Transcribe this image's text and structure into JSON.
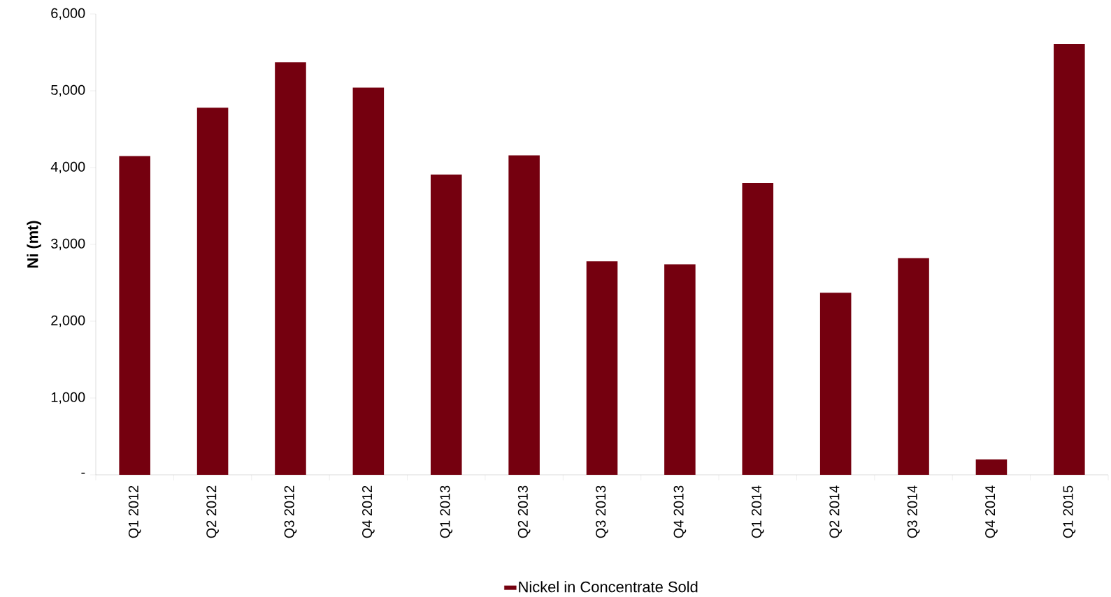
{
  "chart_data": {
    "type": "bar",
    "ylabel": "Ni (mt)",
    "categories": [
      "Q1  2012",
      "Q2  2012",
      "Q3  2012",
      "Q4  2012",
      "Q1  2013",
      "Q2  2013",
      "Q3  2013",
      "Q4  2013",
      "Q1  2014",
      "Q2  2014",
      "Q3  2014",
      "Q4  2014",
      "Q1  2015"
    ],
    "series": [
      {
        "name": "Nickel in Concentrate Sold",
        "color": "#75000f",
        "values": [
          4150,
          4780,
          5370,
          5040,
          3910,
          4160,
          2780,
          2740,
          3800,
          2370,
          2820,
          200,
          5610
        ]
      }
    ],
    "ylim": [
      0,
      6000
    ],
    "yticks": [
      {
        "value": 0,
        "label": "-"
      },
      {
        "value": 1000,
        "label": "1,000"
      },
      {
        "value": 2000,
        "label": "2,000"
      },
      {
        "value": 3000,
        "label": "3,000"
      },
      {
        "value": 4000,
        "label": "4,000"
      },
      {
        "value": 5000,
        "label": "5,000"
      },
      {
        "value": 6000,
        "label": "6,000"
      }
    ],
    "grid": false,
    "legend": "bottom"
  }
}
